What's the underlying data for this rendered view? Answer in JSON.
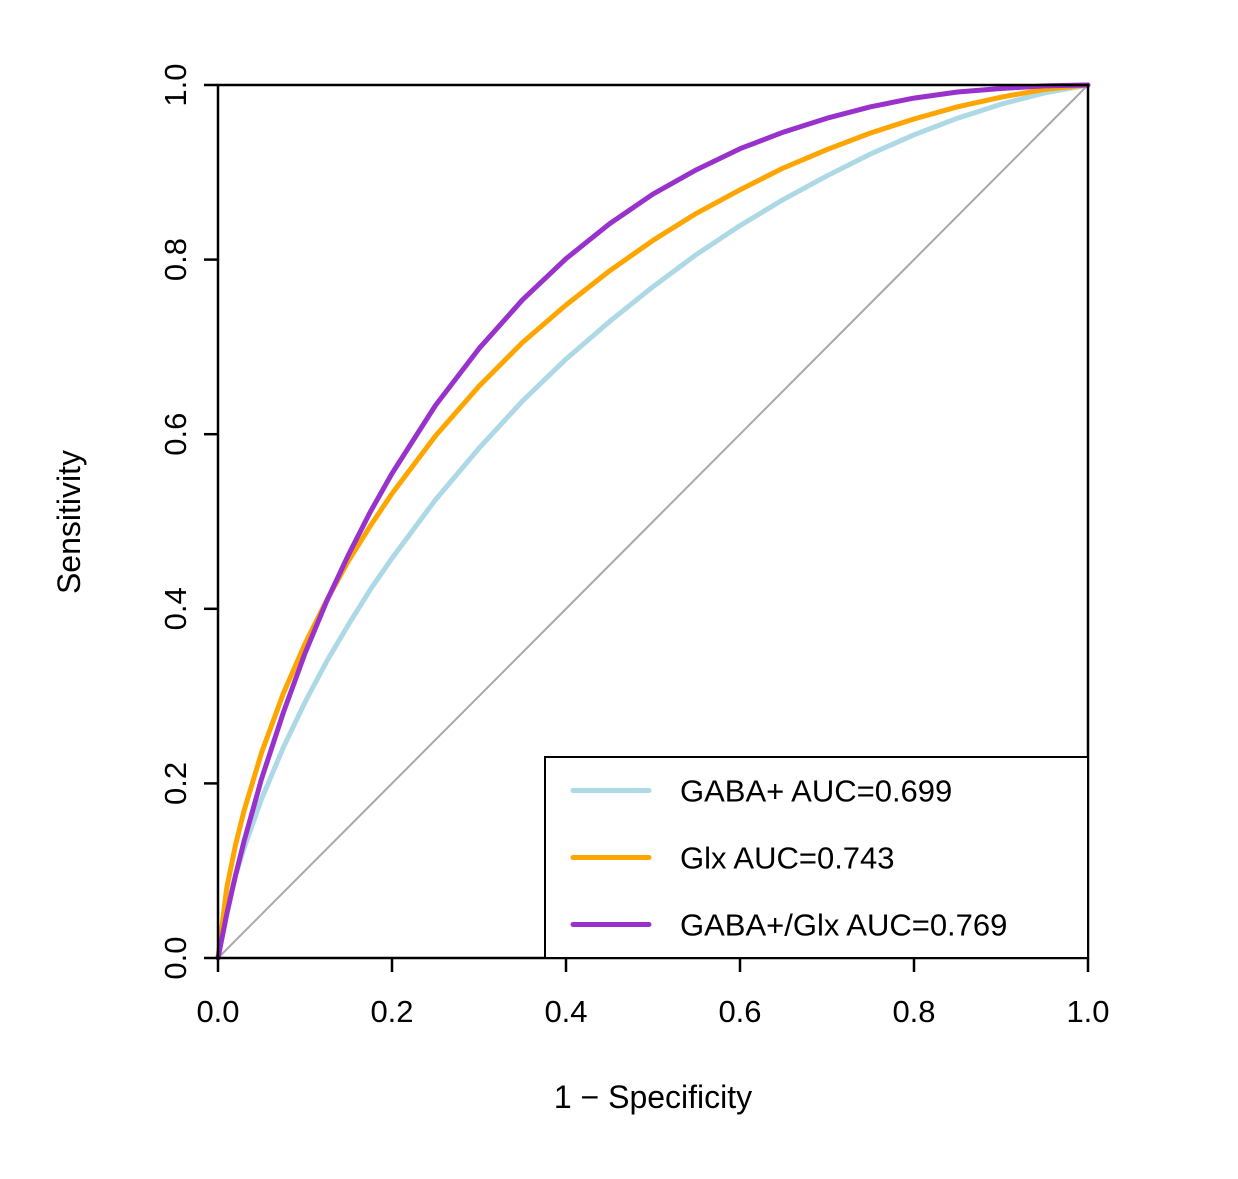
{
  "chart_data": {
    "type": "line",
    "title": "",
    "xlabel": "1 − Specificity",
    "ylabel": "Sensitivity",
    "xlim": [
      0,
      1
    ],
    "ylim": [
      0,
      1
    ],
    "grid": false,
    "legend_position": "bottom-right",
    "x_ticks": [
      0,
      0.2,
      0.4,
      0.6,
      0.8,
      1
    ],
    "x_tick_labels": [
      "0.0",
      "0.2",
      "0.4",
      "0.6",
      "0.8",
      "1.0"
    ],
    "y_ticks": [
      0,
      0.2,
      0.4,
      0.6,
      0.8,
      1
    ],
    "y_tick_labels": [
      "0.0",
      "0.2",
      "0.4",
      "0.6",
      "0.8",
      "1.0"
    ],
    "reference_line": {
      "from": [
        0,
        0
      ],
      "to": [
        1,
        1
      ],
      "color": "#a8a8a8"
    },
    "x": [
      0,
      0.01,
      0.02,
      0.03,
      0.05,
      0.075,
      0.1,
      0.125,
      0.15,
      0.175,
      0.2,
      0.25,
      0.3,
      0.35,
      0.4,
      0.45,
      0.5,
      0.55,
      0.6,
      0.65,
      0.7,
      0.75,
      0.8,
      0.85,
      0.9,
      0.95,
      1
    ],
    "series": [
      {
        "id": "gaba",
        "name": "GABA+",
        "auc": 0.699,
        "label": "GABA+ AUC=0.699",
        "color": "#ADD8E6",
        "y": [
          0,
          0.056,
          0.094,
          0.126,
          0.182,
          0.241,
          0.293,
          0.34,
          0.382,
          0.422,
          0.458,
          0.525,
          0.584,
          0.638,
          0.686,
          0.729,
          0.769,
          0.806,
          0.839,
          0.869,
          0.896,
          0.921,
          0.943,
          0.962,
          0.978,
          0.991,
          1
        ]
      },
      {
        "id": "glx",
        "name": "Glx",
        "auc": 0.743,
        "label": "Glx AUC=0.743",
        "color": "#FFA500",
        "y": [
          0,
          0.08,
          0.129,
          0.169,
          0.235,
          0.303,
          0.36,
          0.41,
          0.455,
          0.495,
          0.532,
          0.598,
          0.655,
          0.705,
          0.748,
          0.787,
          0.822,
          0.853,
          0.88,
          0.905,
          0.926,
          0.945,
          0.961,
          0.975,
          0.986,
          0.995,
          1
        ]
      },
      {
        "id": "gaba-glx",
        "name": "GABA+/Glx",
        "auc": 0.769,
        "label": "GABA+/Glx AUC=0.769",
        "color": "#9932CC",
        "y": [
          0,
          0.05,
          0.094,
          0.134,
          0.205,
          0.281,
          0.349,
          0.409,
          0.462,
          0.511,
          0.555,
          0.633,
          0.698,
          0.754,
          0.801,
          0.841,
          0.875,
          0.903,
          0.927,
          0.946,
          0.962,
          0.975,
          0.985,
          0.992,
          0.996,
          0.999,
          1
        ]
      }
    ]
  }
}
